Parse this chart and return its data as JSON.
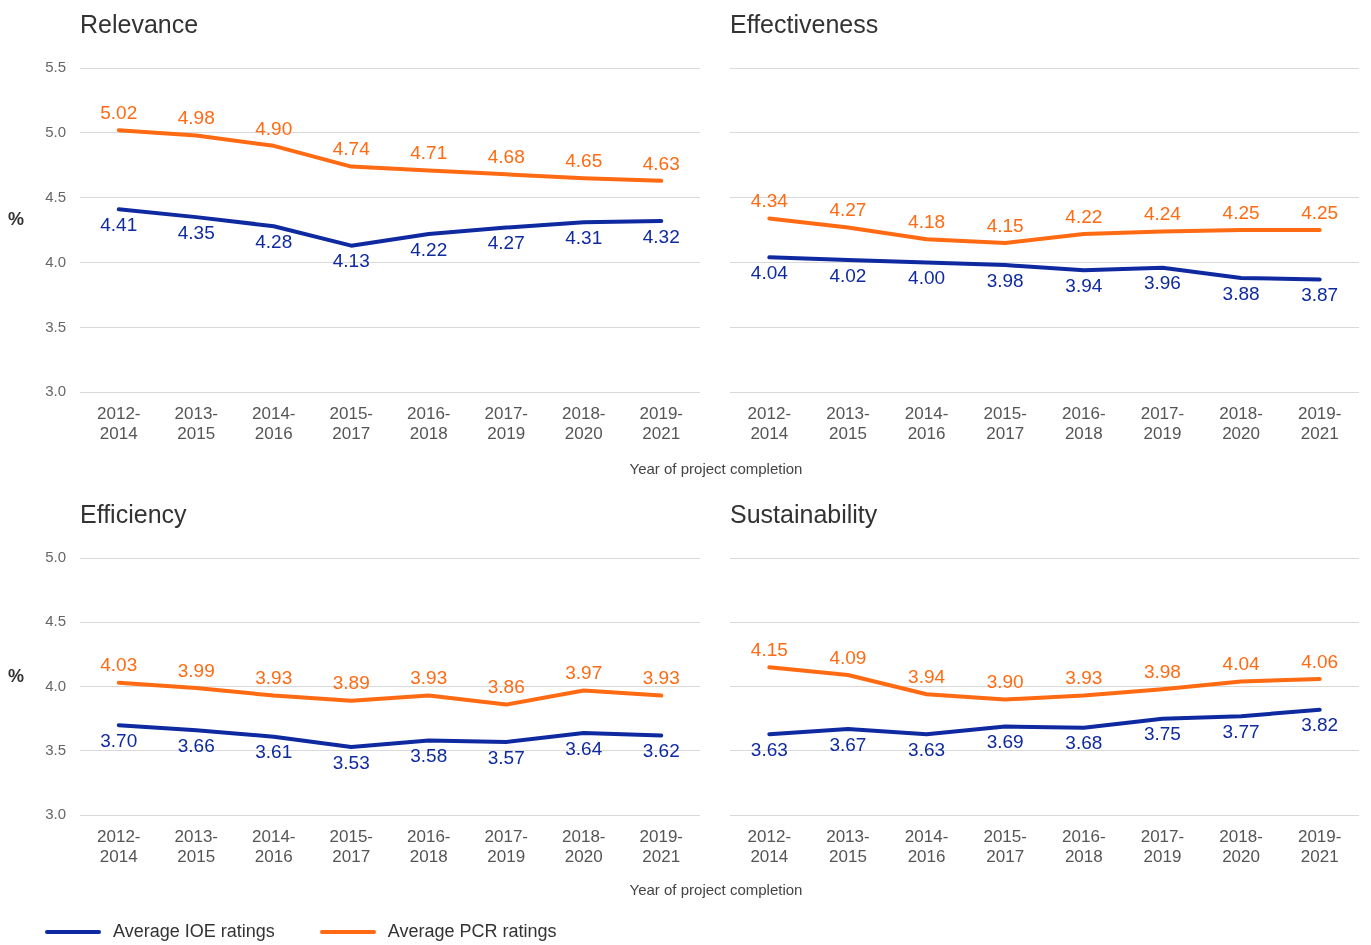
{
  "chart_data": [
    {
      "type": "line",
      "title": "Relevance",
      "xlabel": "Year of project completion",
      "ylabel": "%",
      "categories": [
        "2012-2014",
        "2013-2015",
        "2014-2016",
        "2015-2017",
        "2016-2018",
        "2017-2019",
        "2018-2020",
        "2019-2021"
      ],
      "ylim": [
        3.0,
        5.5
      ],
      "yticks": [
        {
          "value": 3,
          "label": "3.0"
        },
        {
          "value": 3.5,
          "label": "3.5"
        },
        {
          "value": 4,
          "label": "4.0"
        },
        {
          "value": 4.5,
          "label": "4.5"
        },
        {
          "value": 5,
          "label": "5.0"
        },
        {
          "value": 5.5,
          "label": "5.5"
        }
      ],
      "grid": "y",
      "marker": "none",
      "legend": "bottom",
      "series": [
        {
          "name": "Average IOE ratings",
          "color": "#0f2aa0",
          "values": [
            4.41,
            4.35,
            4.28,
            4.13,
            4.22,
            4.27,
            4.31,
            4.32
          ],
          "value_labels": [
            "4.41",
            "4.35",
            "4.28",
            "4.13",
            "4.22",
            "4.27",
            "4.31",
            "4.32"
          ]
        },
        {
          "name": "Average PCR ratings",
          "color": "#ff6a13",
          "values": [
            5.02,
            4.98,
            4.9,
            4.74,
            4.71,
            4.68,
            4.65,
            4.63
          ],
          "value_labels": [
            "5.02",
            "4.98",
            "4.90",
            "4.74",
            "4.71",
            "4.68",
            "4.65",
            "4.63"
          ]
        }
      ]
    },
    {
      "type": "line",
      "title": "Effectiveness",
      "categories": [
        "2012-2014",
        "2013-2015",
        "2014-2016",
        "2015-2017",
        "2016-2018",
        "2017-2019",
        "2018-2020",
        "2019-2021"
      ],
      "ylim": [
        3.0,
        5.5
      ],
      "yticks": [
        3,
        3.5,
        4,
        4.5,
        5,
        5.5
      ],
      "tick_labels": "x",
      "grid": "y",
      "marker": "none",
      "series": [
        {
          "color": "#0f2aa0",
          "values": [
            4.04,
            4.02,
            4.0,
            3.98,
            3.94,
            3.96,
            3.88,
            3.87
          ],
          "value_labels": [
            "4.04",
            "4.02",
            "4.00",
            "3.98",
            "3.94",
            "3.96",
            "3.88",
            "3.87"
          ]
        },
        {
          "color": "#ff6a13",
          "values": [
            4.34,
            4.27,
            4.18,
            4.15,
            4.22,
            4.24,
            4.25,
            4.25
          ],
          "value_labels": [
            "4.34",
            "4.27",
            "4.18",
            "4.15",
            "4.22",
            "4.24",
            "4.25",
            "4.25"
          ]
        }
      ]
    },
    {
      "type": "line",
      "title": "Efficiency",
      "xlabel": "Year of project completion",
      "ylabel": "%",
      "categories": [
        "2012-2014",
        "2013-2015",
        "2014-2016",
        "2015-2017",
        "2016-2018",
        "2017-2019",
        "2018-2020",
        "2019-2021"
      ],
      "ylim": [
        3.0,
        5.0
      ],
      "yticks": [
        {
          "value": 3,
          "label": "3.0"
        },
        {
          "value": 3.5,
          "label": "3.5"
        },
        {
          "value": 4,
          "label": "4.0"
        },
        {
          "value": 4.5,
          "label": "4.5"
        },
        {
          "value": 5,
          "label": "5.0"
        }
      ],
      "grid": "y",
      "marker": "none",
      "series": [
        {
          "color": "#0f2aa0",
          "values": [
            3.7,
            3.66,
            3.61,
            3.53,
            3.58,
            3.57,
            3.64,
            3.62
          ],
          "value_labels": [
            "3.70",
            "3.66",
            "3.61",
            "3.53",
            "3.58",
            "3.57",
            "3.64",
            "3.62"
          ]
        },
        {
          "color": "#ff6a13",
          "values": [
            4.03,
            3.99,
            3.93,
            3.89,
            3.93,
            3.86,
            3.97,
            3.93
          ],
          "value_labels": [
            "4.03",
            "3.99",
            "3.93",
            "3.89",
            "3.93",
            "3.86",
            "3.97",
            "3.93"
          ]
        }
      ]
    },
    {
      "type": "line",
      "title": "Sustainability",
      "categories": [
        "2012-2014",
        "2013-2015",
        "2014-2016",
        "2015-2017",
        "2016-2018",
        "2017-2019",
        "2018-2020",
        "2019-2021"
      ],
      "ylim": [
        3.0,
        5.0
      ],
      "yticks": [
        3,
        3.5,
        4,
        4.5,
        5
      ],
      "tick_labels": "x",
      "grid": "y",
      "marker": "none",
      "series": [
        {
          "color": "#0f2aa0",
          "values": [
            3.63,
            3.67,
            3.63,
            3.69,
            3.68,
            3.75,
            3.77,
            3.82
          ],
          "value_labels": [
            "3.63",
            "3.67",
            "3.63",
            "3.69",
            "3.68",
            "3.75",
            "3.77",
            "3.82"
          ]
        },
        {
          "color": "#ff6a13",
          "values": [
            4.15,
            4.09,
            3.94,
            3.9,
            3.93,
            3.98,
            4.04,
            4.06
          ],
          "value_labels": [
            "4.15",
            "4.09",
            "3.94",
            "3.90",
            "3.93",
            "3.98",
            "4.04",
            "4.06"
          ]
        }
      ]
    }
  ]
}
